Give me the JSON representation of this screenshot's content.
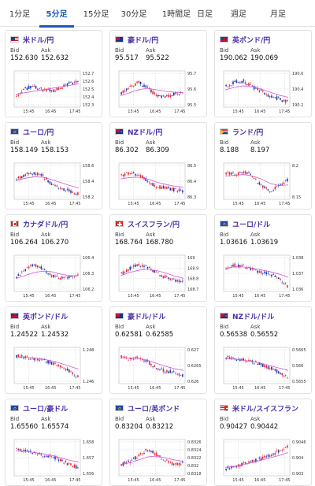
{
  "tabs": [
    {
      "label": "1分足",
      "active": false
    },
    {
      "label": "5分足",
      "active": true
    },
    {
      "label": "15分足",
      "active": false
    },
    {
      "label": "30分足",
      "active": false
    },
    {
      "label": "1時間足",
      "active": false
    },
    {
      "label": "日足",
      "active": false
    },
    {
      "label": "週足",
      "active": false
    },
    {
      "label": "月足",
      "active": false
    }
  ],
  "labels": {
    "bid": "Bid",
    "ask": "Ask"
  },
  "colors": {
    "up": "#e8262e",
    "down": "#1b2fb5",
    "ma": "#d455d4",
    "grid": "#d0d0d0",
    "pair_text": "#4a2faa",
    "tab_active": "#1c58b8"
  },
  "cards": [
    {
      "pair": "米ドル/円",
      "flag": "us",
      "bid": "152.630",
      "ask": "152.632",
      "chart_data": {
        "type": "candlestick",
        "x_ticks": [
          "15:45",
          "16:45",
          "17:45"
        ],
        "y_ticks": [
          "152.7",
          "152.6",
          "152.5",
          "152.4",
          "152.3"
        ],
        "ylim": [
          152.25,
          152.75
        ],
        "trend": [
          0.3,
          0.55,
          0.6,
          0.5,
          0.45,
          0.55,
          0.7,
          0.8
        ],
        "ma": [
          0.35,
          0.4,
          0.45,
          0.5,
          0.55,
          0.6,
          0.65,
          0.7
        ]
      }
    },
    {
      "pair": "豪ドル/円",
      "flag": "au",
      "bid": "95.517",
      "ask": "95.522",
      "chart_data": {
        "type": "candlestick",
        "x_ticks": [
          "15:45",
          "16:45",
          "17:45"
        ],
        "y_ticks": [
          "95.7",
          "95.6",
          "95.5"
        ],
        "ylim": [
          95.4,
          95.75
        ],
        "trend": [
          0.4,
          0.6,
          0.75,
          0.55,
          0.3,
          0.25,
          0.35,
          0.4
        ],
        "ma": [
          0.3,
          0.4,
          0.5,
          0.55,
          0.5,
          0.45,
          0.42,
          0.4
        ]
      }
    },
    {
      "pair": "英ポンド/円",
      "flag": "gb",
      "bid": "190.062",
      "ask": "190.069",
      "chart_data": {
        "type": "candlestick",
        "x_ticks": [
          "15:45",
          "16:45",
          "17:45"
        ],
        "y_ticks": [
          "190.6",
          "190.4",
          "190.2"
        ],
        "ylim": [
          190.0,
          190.7
        ],
        "trend": [
          0.6,
          0.75,
          0.8,
          0.6,
          0.45,
          0.3,
          0.2,
          0.1
        ],
        "ma": [
          0.5,
          0.58,
          0.63,
          0.6,
          0.52,
          0.42,
          0.32,
          0.25
        ]
      }
    },
    {
      "pair": "ユーロ/円",
      "flag": "eu",
      "bid": "158.149",
      "ask": "158.153",
      "chart_data": {
        "type": "candlestick",
        "x_ticks": [
          "15:45",
          "16:45",
          "17:45"
        ],
        "y_ticks": [
          "158.6",
          "158.4",
          "158.2"
        ],
        "ylim": [
          158.05,
          158.7
        ],
        "trend": [
          0.6,
          0.75,
          0.8,
          0.7,
          0.45,
          0.3,
          0.2,
          0.1
        ],
        "ma": [
          0.55,
          0.62,
          0.67,
          0.66,
          0.58,
          0.48,
          0.38,
          0.3
        ]
      }
    },
    {
      "pair": "NZドル/円",
      "flag": "nz",
      "bid": "86.302",
      "ask": "86.309",
      "chart_data": {
        "type": "candlestick",
        "x_ticks": [
          "15:45",
          "16:45",
          "17:45"
        ],
        "y_ticks": [
          "86.5",
          "86.4",
          "86.3"
        ],
        "ylim": [
          86.2,
          86.55
        ],
        "trend": [
          0.7,
          0.8,
          0.75,
          0.55,
          0.35,
          0.3,
          0.25,
          0.2
        ],
        "ma": [
          0.6,
          0.65,
          0.66,
          0.6,
          0.5,
          0.42,
          0.36,
          0.32
        ]
      }
    },
    {
      "pair": "ランド/円",
      "flag": "za",
      "bid": "8.188",
      "ask": "8.197",
      "chart_data": {
        "type": "candlestick",
        "x_ticks": [
          "15:45",
          "16:45",
          "17:45"
        ],
        "y_ticks": [
          "8.2",
          "8.15"
        ],
        "ylim": [
          8.1,
          8.24
        ],
        "trend": [
          0.8,
          0.75,
          0.85,
          0.7,
          0.4,
          0.2,
          0.35,
          0.55
        ],
        "ma": [
          0.7,
          0.72,
          0.75,
          0.7,
          0.6,
          0.45,
          0.38,
          0.4
        ]
      }
    },
    {
      "pair": "カナダドル/円",
      "flag": "ca",
      "bid": "106.264",
      "ask": "106.270",
      "chart_data": {
        "type": "candlestick",
        "x_ticks": [
          "15:45",
          "16:45",
          "17:45"
        ],
        "y_ticks": [
          "106.4",
          "106.3",
          "106.2"
        ],
        "ylim": [
          106.12,
          106.45
        ],
        "trend": [
          0.4,
          0.65,
          0.8,
          0.7,
          0.45,
          0.35,
          0.4,
          0.5
        ],
        "ma": [
          0.35,
          0.45,
          0.55,
          0.6,
          0.58,
          0.5,
          0.45,
          0.45
        ]
      }
    },
    {
      "pair": "スイスフラン/円",
      "flag": "ch",
      "bid": "168.764",
      "ask": "168.780",
      "chart_data": {
        "type": "candlestick",
        "x_ticks": [
          "15:45",
          "16:45",
          "17:45"
        ],
        "y_ticks": [
          "169",
          "168.9",
          "168.8",
          "168.7"
        ],
        "ylim": [
          168.65,
          169.05
        ],
        "trend": [
          0.5,
          0.7,
          0.8,
          0.75,
          0.55,
          0.4,
          0.3,
          0.25
        ],
        "ma": [
          0.45,
          0.55,
          0.63,
          0.66,
          0.62,
          0.54,
          0.44,
          0.36
        ]
      }
    },
    {
      "pair": "ユーロ/ドル",
      "flag": "eu",
      "bid": "1.03616",
      "ask": "1.03619",
      "chart_data": {
        "type": "candlestick",
        "x_ticks": [
          "15:45",
          "16:45",
          "17:45"
        ],
        "y_ticks": [
          "1.038",
          "1.037",
          "1.036"
        ],
        "ylim": [
          1.0355,
          1.0385
        ],
        "trend": [
          0.7,
          0.8,
          0.75,
          0.65,
          0.55,
          0.5,
          0.35,
          0.1
        ],
        "ma": [
          0.7,
          0.74,
          0.74,
          0.7,
          0.64,
          0.58,
          0.5,
          0.4
        ]
      }
    },
    {
      "pair": "英ポンド/ドル",
      "flag": "gb",
      "bid": "1.24522",
      "ask": "1.24532",
      "chart_data": {
        "type": "candlestick",
        "x_ticks": [
          "15:45",
          "16:45",
          "17:45"
        ],
        "y_ticks": [
          "1.248",
          "1.246"
        ],
        "ylim": [
          1.244,
          1.249
        ],
        "trend": [
          0.85,
          0.8,
          0.75,
          0.7,
          0.6,
          0.5,
          0.35,
          0.15
        ],
        "ma": [
          0.8,
          0.8,
          0.78,
          0.74,
          0.68,
          0.6,
          0.5,
          0.4
        ]
      }
    },
    {
      "pair": "豪ドル/ドル",
      "flag": "au",
      "bid": "0.62581",
      "ask": "0.62585",
      "chart_data": {
        "type": "candlestick",
        "x_ticks": [
          "15:45",
          "16:45",
          "17:45"
        ],
        "y_ticks": [
          "0.627",
          "0.6265",
          "0.626"
        ],
        "ylim": [
          0.6255,
          0.6273
        ],
        "trend": [
          0.85,
          0.75,
          0.8,
          0.65,
          0.45,
          0.35,
          0.3,
          0.2
        ],
        "ma": [
          0.78,
          0.78,
          0.76,
          0.7,
          0.6,
          0.5,
          0.42,
          0.36
        ]
      }
    },
    {
      "pair": "NZドル/ドル",
      "flag": "nz",
      "bid": "0.56538",
      "ask": "0.56552",
      "chart_data": {
        "type": "candlestick",
        "x_ticks": [
          "15:45",
          "16:45",
          "17:45"
        ],
        "y_ticks": [
          "0.5665",
          "0.566",
          "0.5655"
        ],
        "ylim": [
          0.5651,
          0.5668
        ],
        "trend": [
          0.8,
          0.75,
          0.7,
          0.65,
          0.55,
          0.45,
          0.3,
          0.15
        ],
        "ma": [
          0.75,
          0.74,
          0.7,
          0.66,
          0.6,
          0.52,
          0.44,
          0.36
        ]
      }
    },
    {
      "pair": "ユーロ/豪ドル",
      "flag": "eu",
      "bid": "1.65560",
      "ask": "1.65574",
      "chart_data": {
        "type": "candlestick",
        "x_ticks": [
          "15:45",
          "16:45",
          "17:45"
        ],
        "y_ticks": [
          "1.658",
          "1.657",
          "1.656"
        ],
        "ylim": [
          1.655,
          1.6585
        ],
        "trend": [
          0.8,
          0.75,
          0.7,
          0.6,
          0.55,
          0.45,
          0.3,
          0.2
        ],
        "ma": [
          0.75,
          0.74,
          0.7,
          0.66,
          0.6,
          0.52,
          0.44,
          0.38
        ]
      }
    },
    {
      "pair": "ユーロ/英ポンド",
      "flag": "eu",
      "bid": "0.83204",
      "ask": "0.83212",
      "chart_data": {
        "type": "candlestick",
        "x_ticks": [
          "15:45",
          "16:45",
          "17:45"
        ],
        "y_ticks": [
          "0.8326",
          "0.8324",
          "0.8322",
          "0.832",
          "0.8318"
        ],
        "ylim": [
          0.8316,
          0.8327
        ],
        "trend": [
          0.3,
          0.4,
          0.6,
          0.8,
          0.65,
          0.45,
          0.3,
          0.35
        ],
        "ma": [
          0.3,
          0.35,
          0.45,
          0.55,
          0.58,
          0.52,
          0.45,
          0.4
        ]
      }
    },
    {
      "pair": "米ドル/スイスフラン",
      "flag": "usch",
      "bid": "0.90427",
      "ask": "0.90442",
      "chart_data": {
        "type": "candlestick",
        "x_ticks": [
          "15:45",
          "16:45",
          "17:45"
        ],
        "y_ticks": [
          "0.9046",
          "0.904",
          "0.903"
        ],
        "ylim": [
          0.9025,
          0.9048
        ],
        "trend": [
          0.15,
          0.25,
          0.3,
          0.4,
          0.5,
          0.6,
          0.75,
          0.9
        ],
        "ma": [
          0.2,
          0.24,
          0.3,
          0.36,
          0.44,
          0.52,
          0.6,
          0.7
        ]
      }
    }
  ]
}
